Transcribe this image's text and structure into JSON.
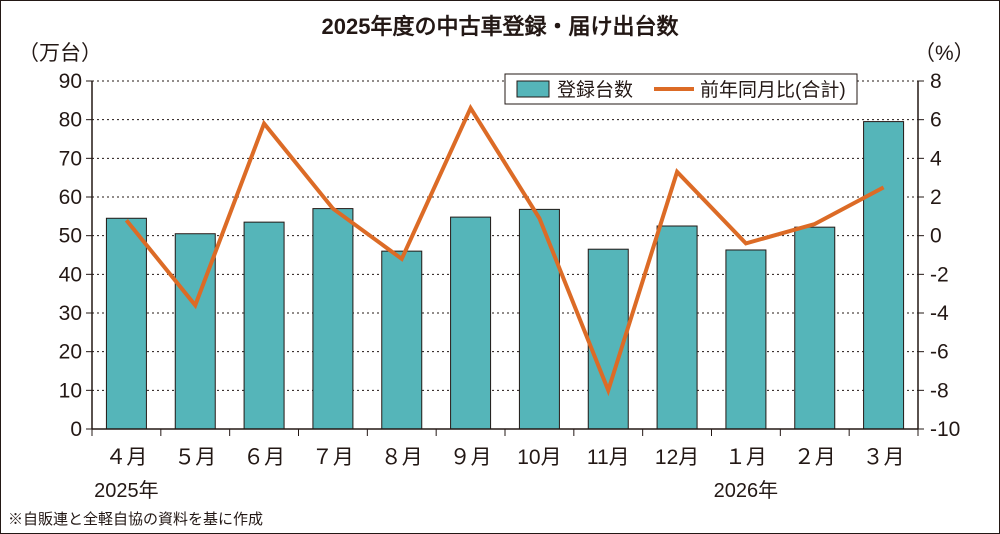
{
  "chart_data": {
    "type": "bar+line",
    "title": "2025年度の中古車登録・届け出台数",
    "categories": [
      "４月",
      "５月",
      "６月",
      "７月",
      "８月",
      "９月",
      "10月",
      "11月",
      "12月",
      "１月",
      "２月",
      "３月"
    ],
    "year_labels": [
      {
        "text": "2025年",
        "category_index": 0
      },
      {
        "text": "2026年",
        "category_index": 9
      }
    ],
    "y_left": {
      "unit": "（万台）",
      "min": 0,
      "max": 90,
      "step": 10
    },
    "y_right": {
      "unit": "（%）",
      "min": -10,
      "max": 8,
      "step": 2
    },
    "series": [
      {
        "name": "登録台数",
        "type": "bar",
        "axis": "left",
        "color": "#55b5b9",
        "values": [
          54.5,
          50.5,
          53.5,
          57,
          46,
          54.8,
          56.8,
          46.5,
          52.5,
          46.3,
          52.2,
          79.5
        ]
      },
      {
        "name": "前年同月比(合計)",
        "type": "line",
        "axis": "right",
        "color": "#dc6b26",
        "values": [
          0.8,
          -3.6,
          5.8,
          1.4,
          -1.2,
          6.6,
          0.9,
          -8.0,
          3.3,
          -0.4,
          0.6,
          2.5
        ]
      }
    ],
    "grid": "dashed horizontal",
    "legend_position": "top-right"
  },
  "footnote": "※自販連と全軽自協の資料を基に作成"
}
